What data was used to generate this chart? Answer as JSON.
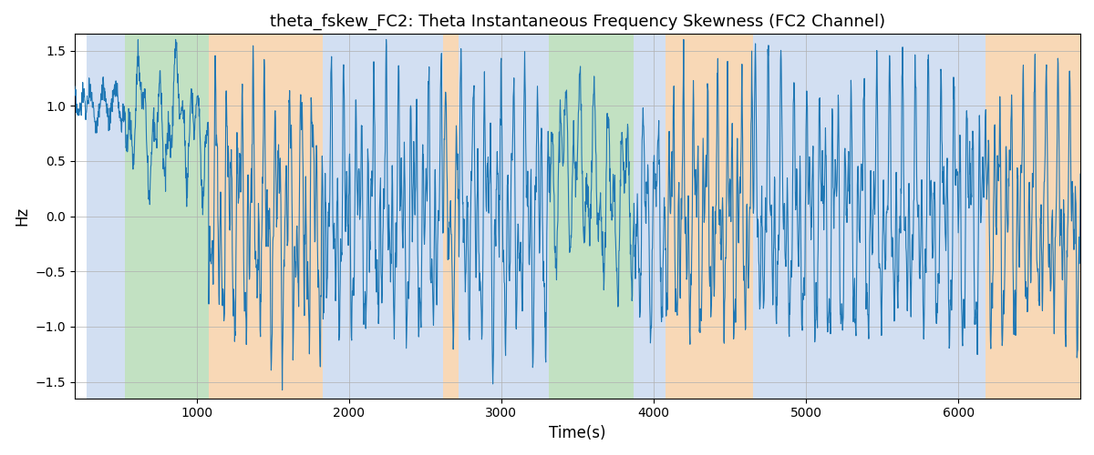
{
  "title": "theta_fskew_FC2: Theta Instantaneous Frequency Skewness (FC2 Channel)",
  "xlabel": "Time(s)",
  "ylabel": "Hz",
  "xlim": [
    200,
    6800
  ],
  "ylim": [
    -1.65,
    1.65
  ],
  "yticks": [
    -1.5,
    -1.0,
    -0.5,
    0.0,
    0.5,
    1.0,
    1.5
  ],
  "xticks": [
    1000,
    2000,
    3000,
    4000,
    5000,
    6000
  ],
  "line_color": "#1f77b4",
  "line_width": 0.8,
  "background_color": "#ffffff",
  "grid_color": "#b0b0b0",
  "bands": [
    {
      "xmin": 280,
      "xmax": 530,
      "color": "#aec6e8",
      "alpha": 0.55
    },
    {
      "xmin": 530,
      "xmax": 1080,
      "color": "#90c990",
      "alpha": 0.55
    },
    {
      "xmin": 1080,
      "xmax": 1830,
      "color": "#f4b97a",
      "alpha": 0.55
    },
    {
      "xmin": 1830,
      "xmax": 2620,
      "color": "#aec6e8",
      "alpha": 0.55
    },
    {
      "xmin": 2620,
      "xmax": 2720,
      "color": "#f4b97a",
      "alpha": 0.55
    },
    {
      "xmin": 2720,
      "xmax": 3310,
      "color": "#aec6e8",
      "alpha": 0.55
    },
    {
      "xmin": 3310,
      "xmax": 3870,
      "color": "#90c990",
      "alpha": 0.55
    },
    {
      "xmin": 3870,
      "xmax": 4080,
      "color": "#aec6e8",
      "alpha": 0.55
    },
    {
      "xmin": 4080,
      "xmax": 4650,
      "color": "#f4b97a",
      "alpha": 0.55
    },
    {
      "xmin": 4650,
      "xmax": 6180,
      "color": "#aec6e8",
      "alpha": 0.55
    },
    {
      "xmin": 6180,
      "xmax": 6800,
      "color": "#f4b97a",
      "alpha": 0.55
    }
  ],
  "figsize": [
    12.0,
    5.0
  ],
  "dpi": 100
}
